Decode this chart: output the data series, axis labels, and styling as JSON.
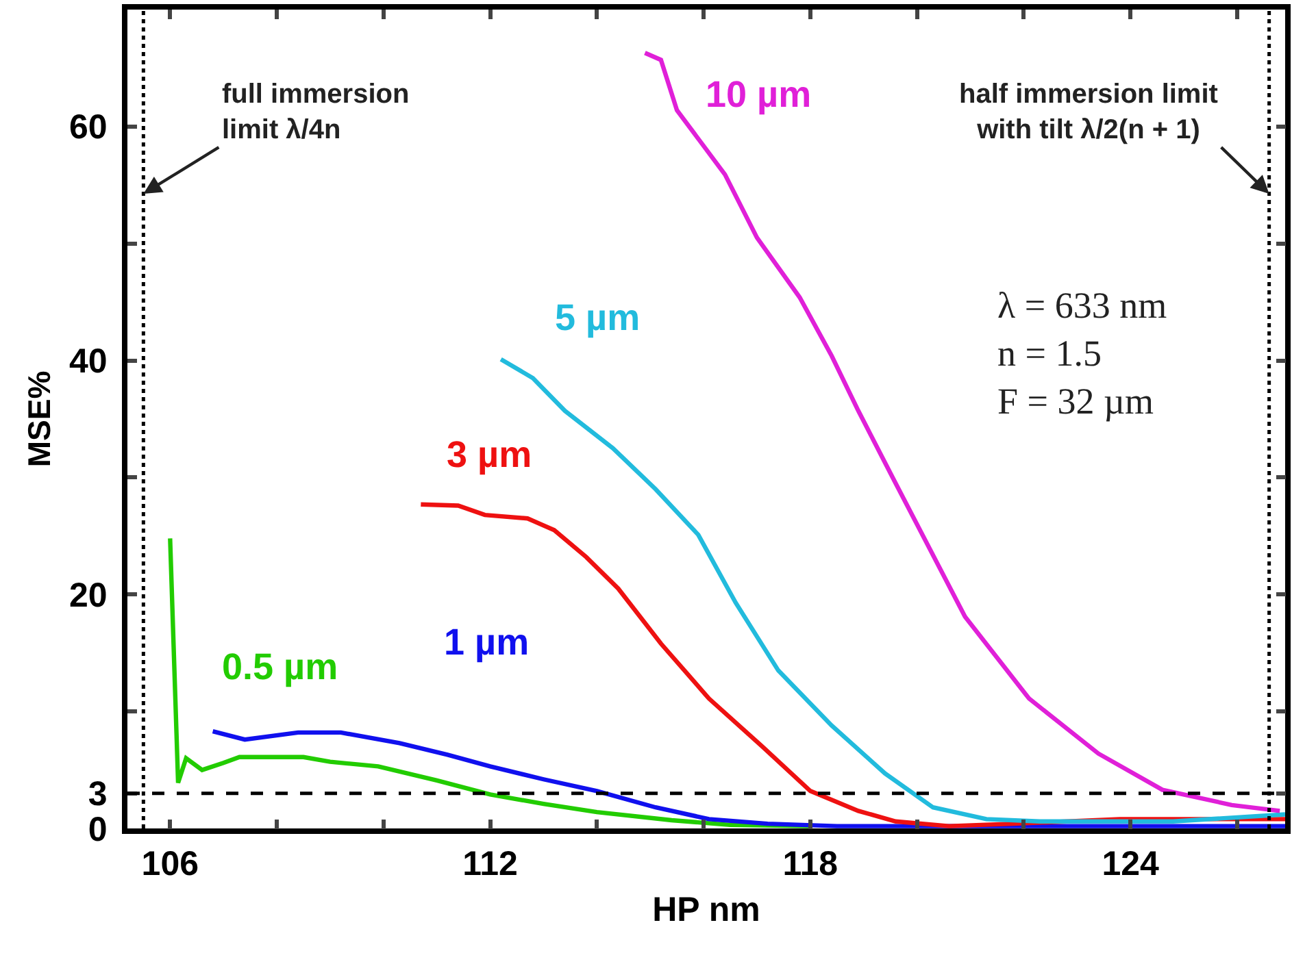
{
  "chart_data": {
    "type": "line",
    "xlabel": "HP nm",
    "ylabel": "MSE%",
    "xlim": [
      105.2,
      126.9
    ],
    "ylim": [
      0,
      70
    ],
    "xticks": [
      106,
      {
        "value": 108,
        "label": null
      },
      {
        "value": 110,
        "label": null
      },
      112,
      {
        "value": 114,
        "label": null
      },
      {
        "value": 116,
        "label": null
      },
      118,
      {
        "value": 120,
        "label": null
      },
      {
        "value": 122,
        "label": null
      },
      124,
      {
        "value": 126,
        "label": null
      }
    ],
    "yticks": [
      0,
      3,
      {
        "value": 10,
        "label": null
      },
      20,
      {
        "value": 30,
        "label": null
      },
      40,
      {
        "value": 50,
        "label": null
      },
      60
    ],
    "grid": false,
    "legend": false,
    "marker": "none",
    "line_style": "solid",
    "series": [
      {
        "name": "0.5 µm",
        "color": "#22cc00",
        "x": [
          106.0,
          106.15,
          106.3,
          106.6,
          107.0,
          107.3,
          108.5,
          109.0,
          109.9,
          111.0,
          112.0,
          113.0,
          114.0,
          115.4,
          116.5,
          118.0
        ],
        "values": [
          24.8,
          3.9,
          6.0,
          5.0,
          5.6,
          6.1,
          6.1,
          5.7,
          5.3,
          4.1,
          2.9,
          2.1,
          1.4,
          0.7,
          0.3,
          0.2
        ]
      },
      {
        "name": "1 µm",
        "color": "#1010ee",
        "x": [
          106.8,
          107.4,
          108.4,
          109.2,
          110.3,
          111.2,
          112.0,
          113.0,
          114.0,
          115.1,
          116.1,
          117.2,
          118.5,
          122.0,
          126.9
        ],
        "values": [
          8.3,
          7.6,
          8.2,
          8.2,
          7.3,
          6.3,
          5.3,
          4.2,
          3.2,
          1.8,
          0.8,
          0.4,
          0.2,
          0.2,
          0.2
        ]
      },
      {
        "name": "3 µm",
        "color": "#ee1111",
        "x": [
          110.7,
          111.4,
          111.9,
          112.7,
          113.2,
          113.8,
          114.4,
          115.2,
          116.1,
          117.1,
          118.0,
          118.9,
          119.6,
          120.6,
          121.8,
          123.8,
          126.9
        ],
        "values": [
          27.7,
          27.6,
          26.8,
          26.5,
          25.5,
          23.2,
          20.5,
          15.8,
          11.1,
          7.0,
          3.2,
          1.5,
          0.6,
          0.2,
          0.4,
          0.8,
          0.8
        ]
      },
      {
        "name": "5 µm",
        "color": "#22bbdd",
        "x": [
          112.2,
          112.8,
          113.4,
          114.3,
          115.1,
          115.9,
          116.6,
          117.4,
          118.4,
          119.4,
          120.3,
          121.3,
          122.3,
          124.8,
          126.9
        ],
        "values": [
          40.1,
          38.5,
          35.7,
          32.5,
          29.0,
          25.1,
          19.3,
          13.5,
          8.8,
          4.7,
          1.8,
          0.8,
          0.6,
          0.6,
          1.2
        ]
      },
      {
        "name": "10 µm",
        "color": "#e020d8",
        "x": [
          114.9,
          115.2,
          115.5,
          116.4,
          117.0,
          117.8,
          118.4,
          118.9,
          119.6,
          120.9,
          122.1,
          123.4,
          124.6,
          125.9,
          126.8
        ],
        "values": [
          66.3,
          65.7,
          61.4,
          55.9,
          50.5,
          45.4,
          40.4,
          35.7,
          29.5,
          18.1,
          11.1,
          6.4,
          3.3,
          2.0,
          1.5
        ]
      }
    ],
    "ref_lines": [
      {
        "axis": "x",
        "value": 105.5,
        "label": "full immersion\nlimit λ/4n",
        "color": "#000000",
        "line_style": "dotted"
      },
      {
        "axis": "x",
        "value": 126.6,
        "label": "half immersion limit\nwith tilt λ/2(n + 1)",
        "color": "#000000",
        "line_style": "dotted"
      },
      {
        "axis": "y",
        "value": 3,
        "label": null,
        "color": "#000000",
        "line_style": "dashed"
      }
    ],
    "annotations": [
      "λ = 633 nm\nn = 1.5\nF = 32 µm"
    ]
  }
}
